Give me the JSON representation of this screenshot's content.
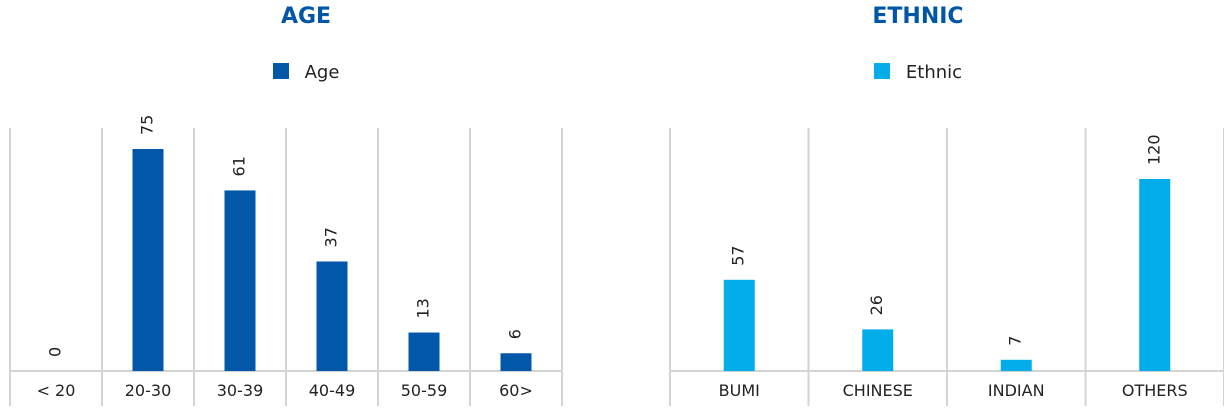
{
  "chart_data": [
    {
      "type": "bar",
      "title": "AGE",
      "title_color": "#0057a8",
      "legend_position": "top-center",
      "grid": true,
      "categories": [
        "< 20",
        "20-30",
        "30-39",
        "40-49",
        "50-59",
        "60>"
      ],
      "series": [
        {
          "name": "Age",
          "color": "#0157a8",
          "values": [
            0,
            75,
            61,
            37,
            13,
            6
          ]
        }
      ],
      "ylim": [
        0,
        80
      ]
    },
    {
      "type": "bar",
      "title": "ETHNIC",
      "title_color": "#0057a8",
      "legend_position": "top-center",
      "grid": true,
      "categories": [
        "BUMI",
        "CHINESE",
        "INDIAN",
        "OTHERS"
      ],
      "series": [
        {
          "name": "Ethnic",
          "color": "#03adea",
          "values": [
            57,
            26,
            7,
            120
          ]
        }
      ],
      "ylim": [
        0,
        128
      ]
    }
  ]
}
